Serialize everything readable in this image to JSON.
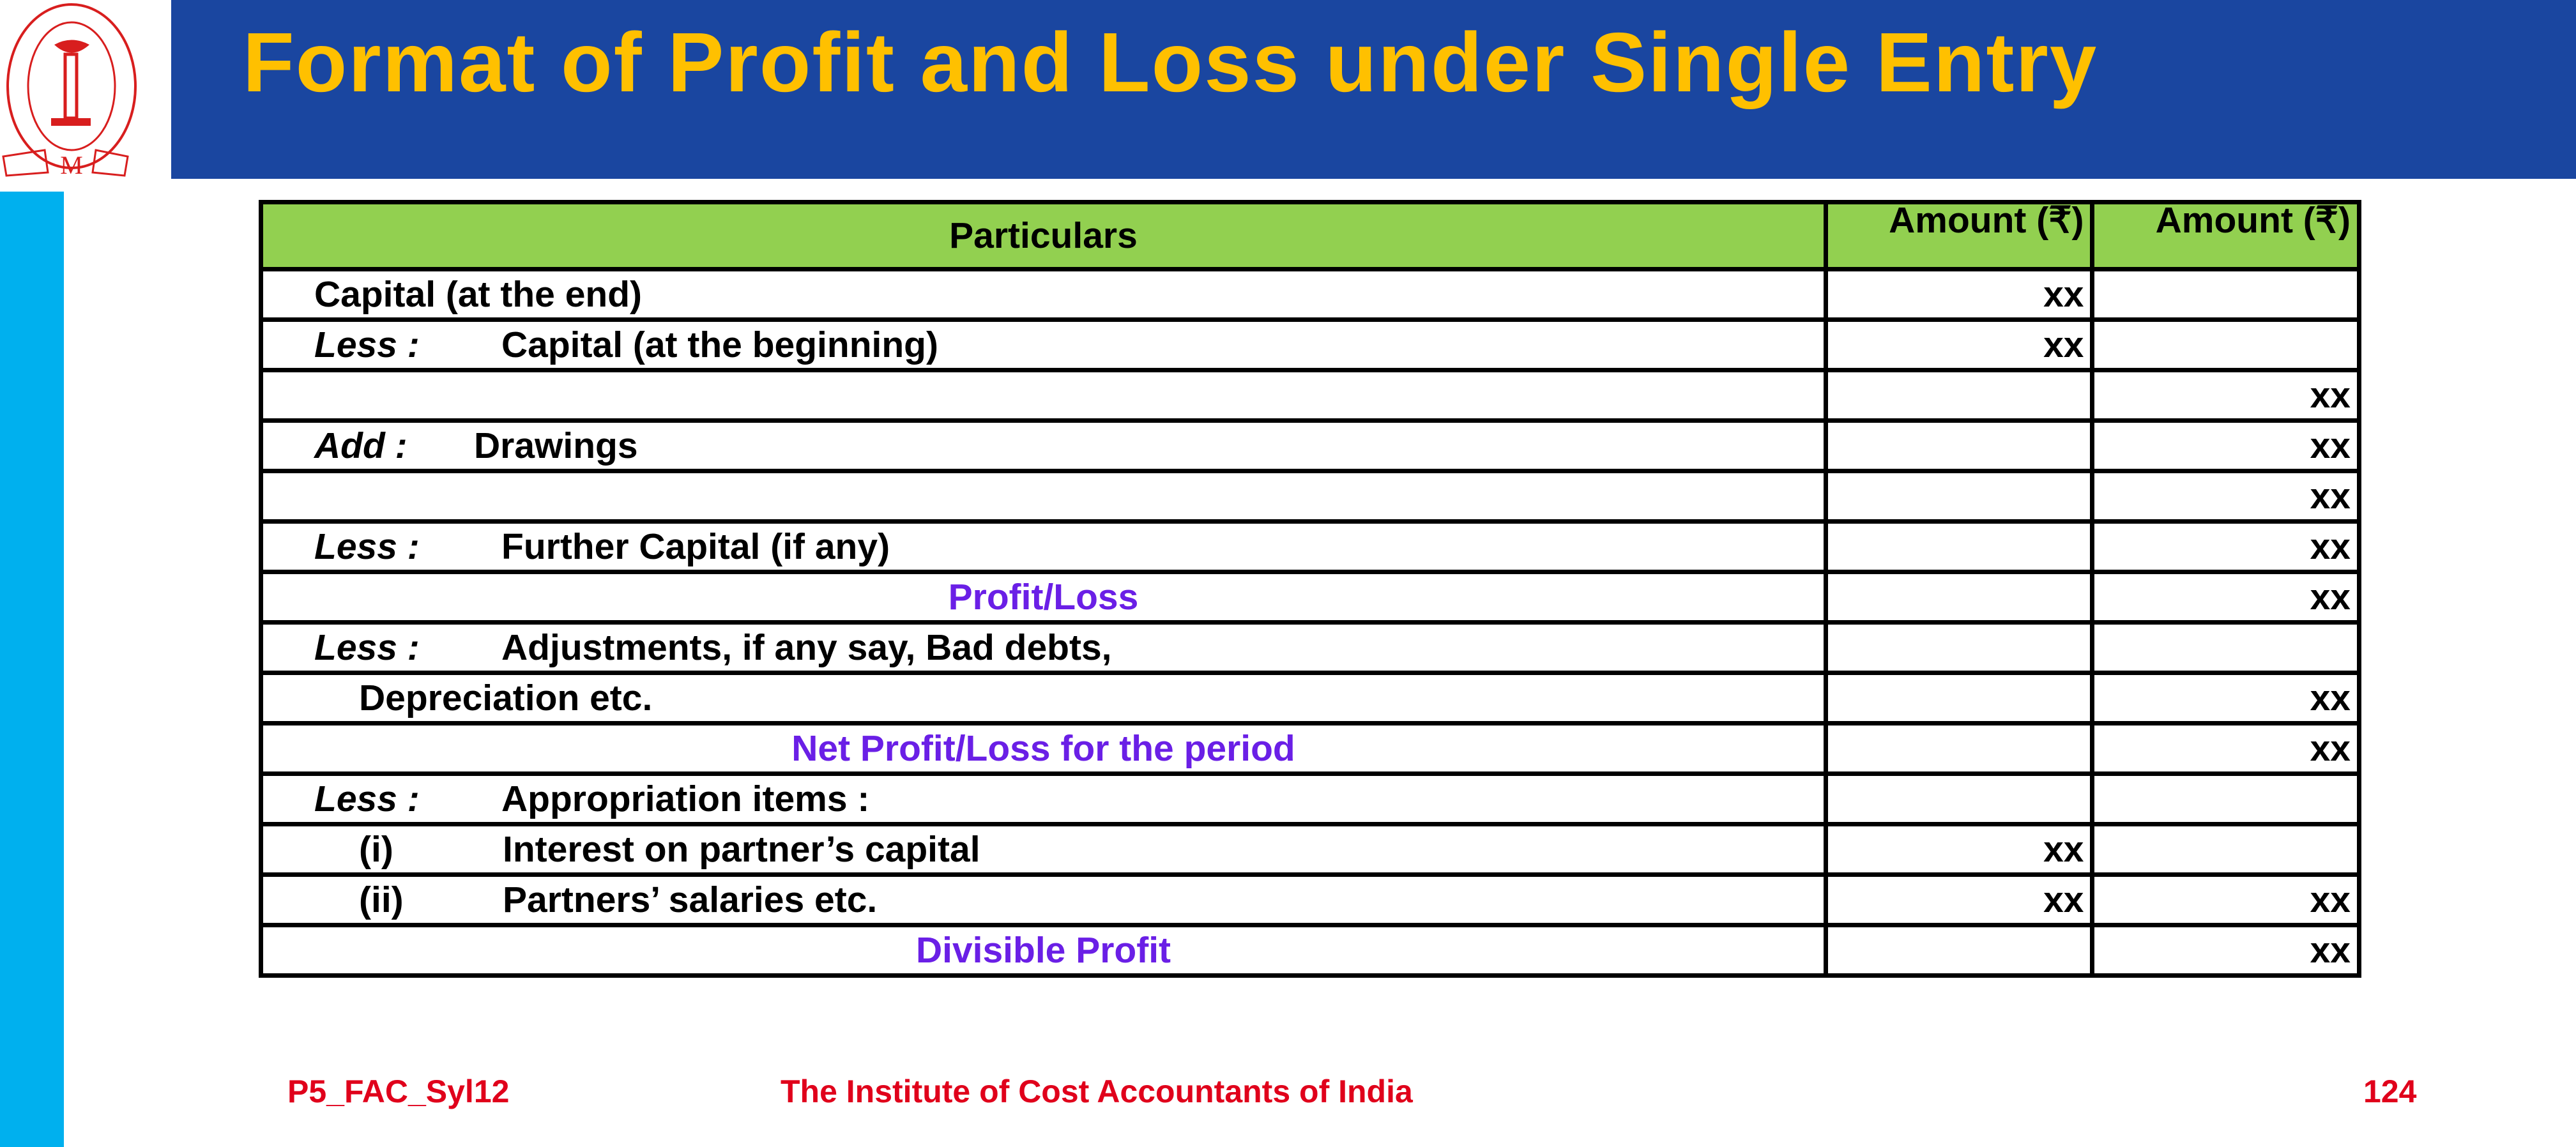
{
  "header": {
    "title": "Format of Profit and Loss under Single Entry",
    "logo_text": "THE INSTITUTE OF COST ACCOUNTANTS OF INDIA",
    "colors": {
      "header_bg": "#1A46A0",
      "title": "#FFC000",
      "sidebar": "#00B0EE",
      "table_header": "#92D050",
      "highlight": "#6A1FE6",
      "footer": "#E0001B"
    }
  },
  "table": {
    "columns": [
      "Particulars",
      "Amount (₹)",
      "Amount (₹)"
    ],
    "rows": [
      {
        "prefix": "",
        "text": "Capital (at the end)",
        "indent": 0,
        "center": false,
        "amt1": "xx",
        "amt2": ""
      },
      {
        "prefix": "Less :",
        "text": "Capital (at the beginning)",
        "indent": 0,
        "center": false,
        "amt1": "xx",
        "amt2": ""
      },
      {
        "prefix": "",
        "text": "",
        "indent": 0,
        "center": false,
        "amt1": "",
        "amt2": "xx"
      },
      {
        "prefix": "Add :",
        "text": "Drawings",
        "indent": 0,
        "center": false,
        "amt1": "",
        "amt2": "xx"
      },
      {
        "prefix": "",
        "text": "",
        "indent": 0,
        "center": false,
        "amt1": "",
        "amt2": "xx"
      },
      {
        "prefix": "Less :",
        "text": "Further Capital (if any)",
        "indent": 0,
        "center": false,
        "amt1": "",
        "amt2": "xx"
      },
      {
        "prefix": "",
        "text": "Profit/Loss",
        "indent": 0,
        "center": true,
        "amt1": "",
        "amt2": "xx"
      },
      {
        "prefix": "Less :",
        "text": "Adjustments, if any say, Bad debts,",
        "indent": 0,
        "center": false,
        "amt1": "",
        "amt2": ""
      },
      {
        "prefix": "",
        "text": "Depreciation etc.",
        "indent": 1,
        "center": false,
        "amt1": "",
        "amt2": "xx"
      },
      {
        "prefix": "",
        "text": "Net Profit/Loss for the period",
        "indent": 0,
        "center": true,
        "amt1": "",
        "amt2": "xx"
      },
      {
        "prefix": "Less :",
        "text": "Appropriation items :",
        "indent": 0,
        "center": false,
        "amt1": "",
        "amt2": ""
      },
      {
        "prefix": "(i)",
        "text": "Interest on partner’s capital",
        "indent": 2,
        "center": false,
        "amt1": "xx",
        "amt2": ""
      },
      {
        "prefix": "(ii)",
        "text": "Partners’ salaries etc.",
        "indent": 2,
        "center": false,
        "amt1": "xx",
        "amt2": "xx"
      },
      {
        "prefix": "",
        "text": "Divisible Profit",
        "indent": 0,
        "center": true,
        "amt1": "",
        "amt2": "xx"
      }
    ]
  },
  "footer": {
    "code": "P5_FAC_Syl12",
    "institute": "The Institute of Cost Accountants of India",
    "page": "124"
  }
}
